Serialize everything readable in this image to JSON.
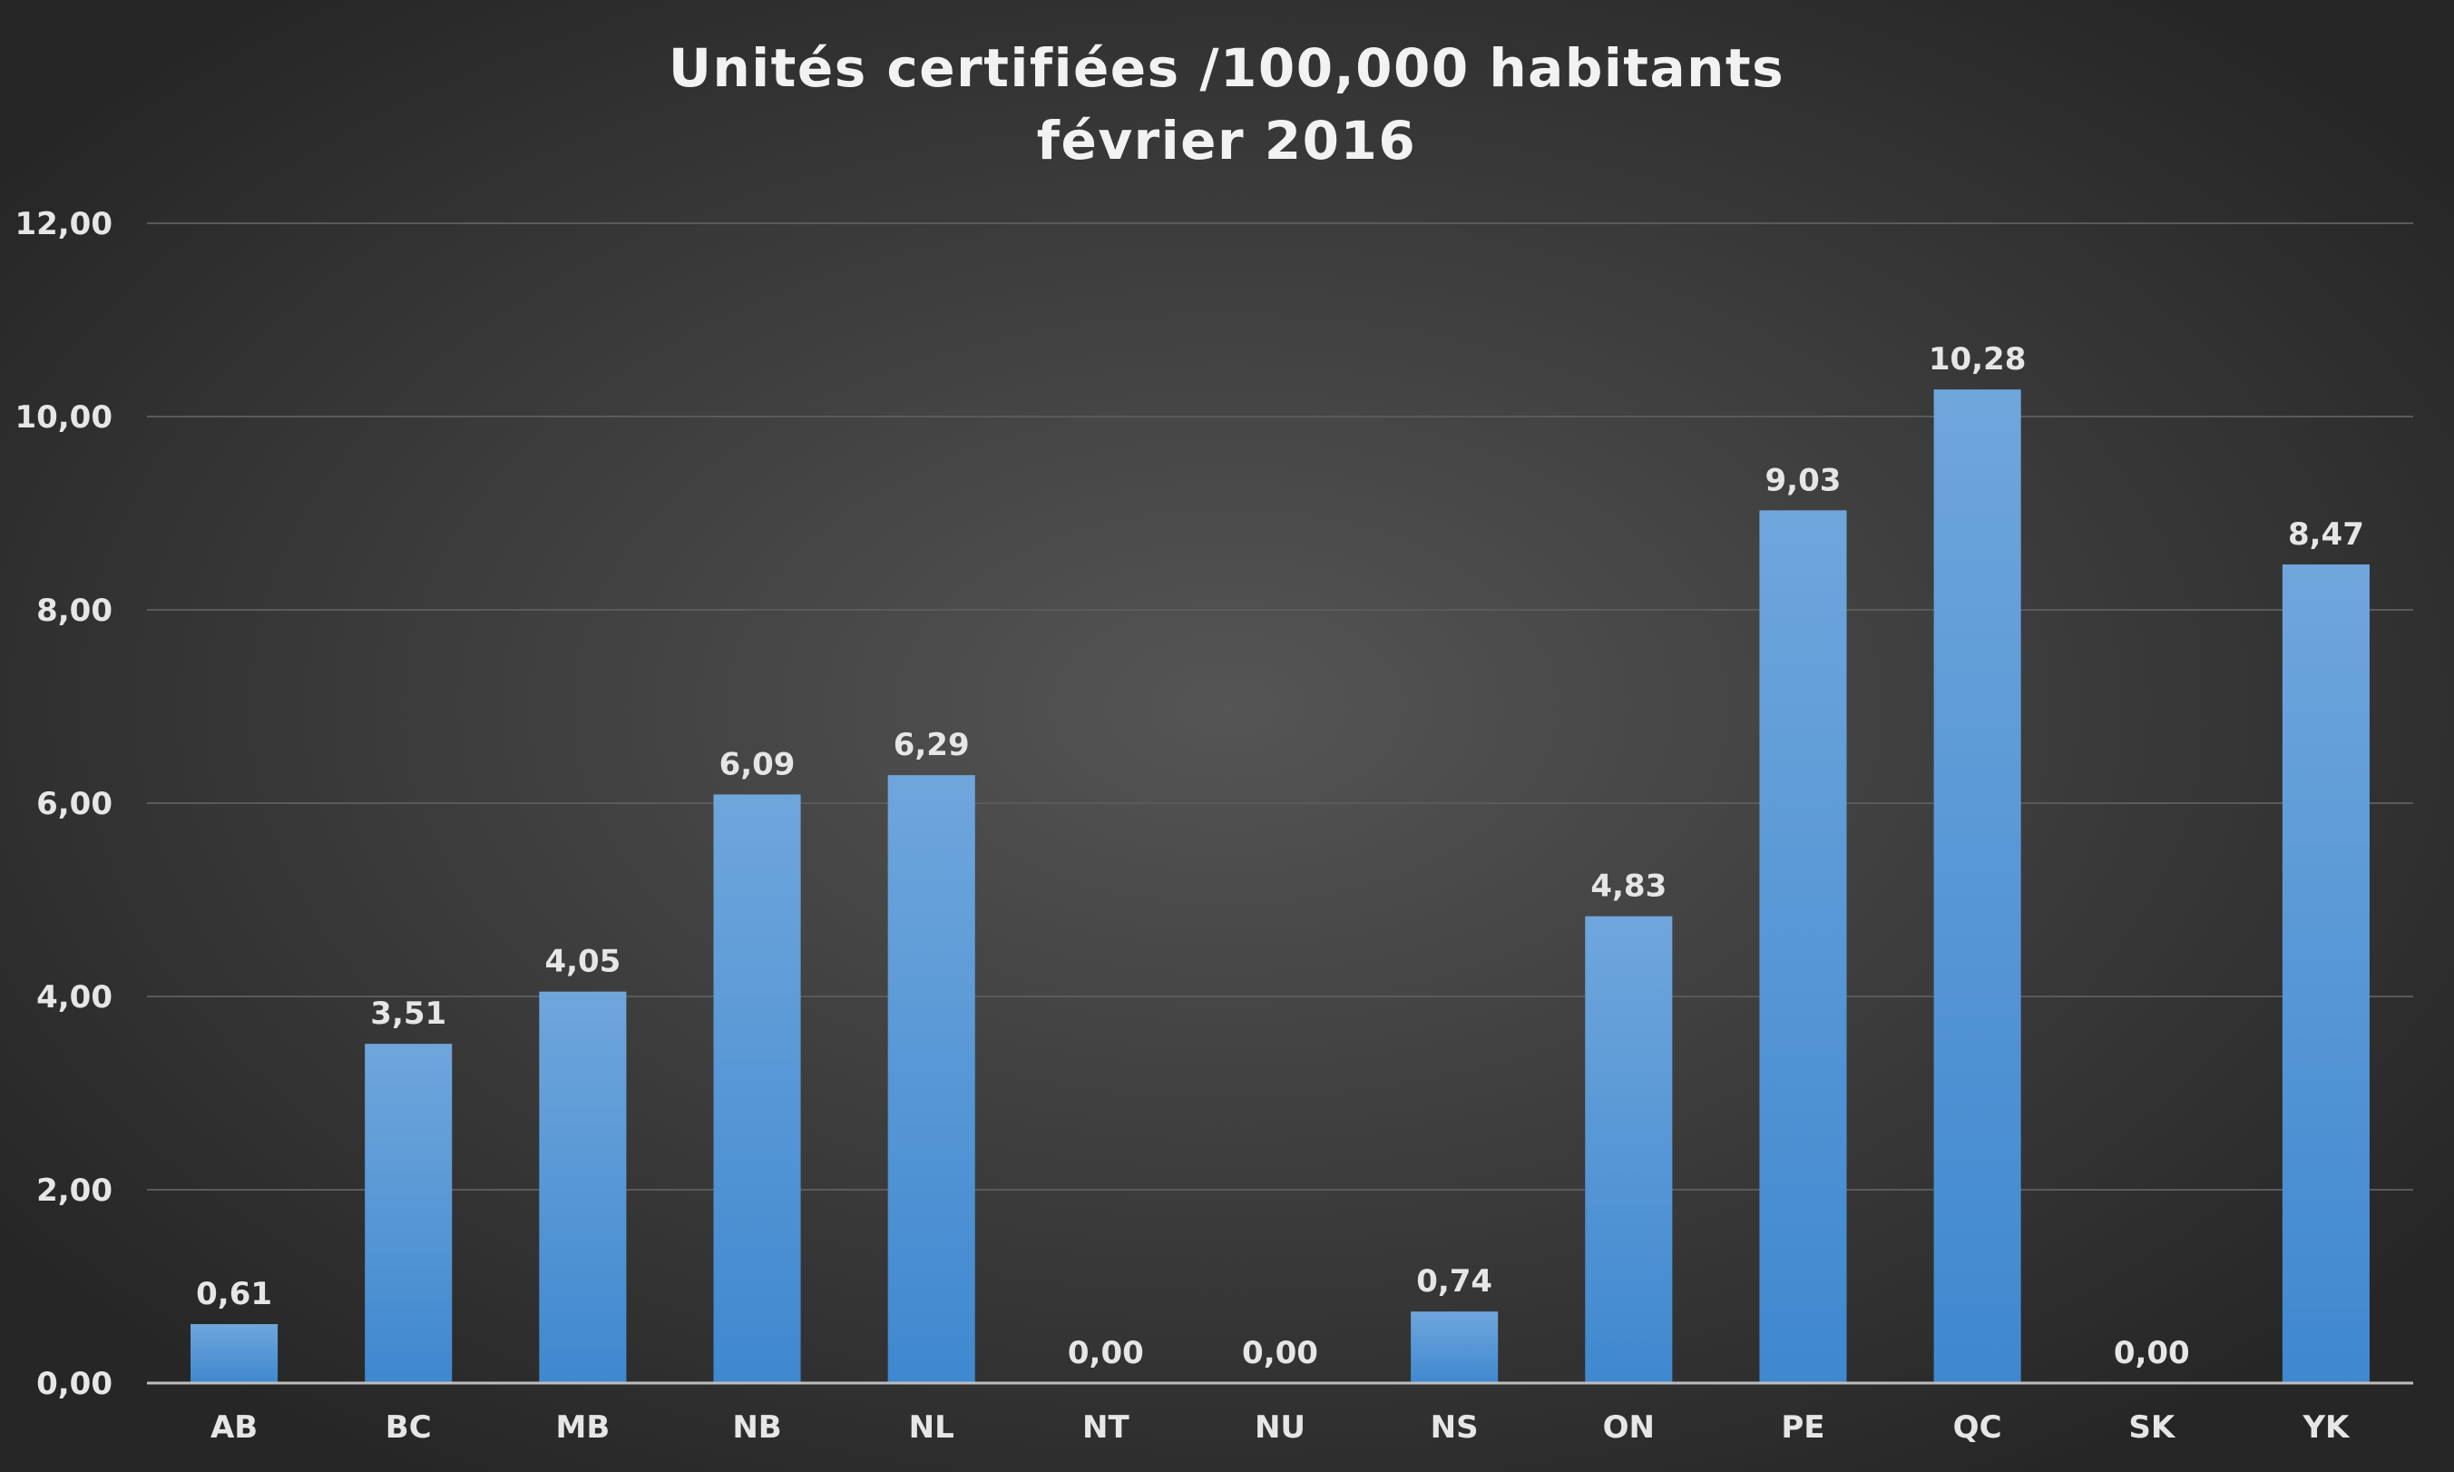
{
  "chart_data": {
    "type": "bar",
    "title": [
      "Unités certifiées /100,000 habitants",
      "février 2016"
    ],
    "categories": [
      "AB",
      "BC",
      "MB",
      "NB",
      "NL",
      "NT",
      "NU",
      "NS",
      "ON",
      "PE",
      "QC",
      "SK",
      "YK"
    ],
    "values": [
      0.61,
      3.51,
      4.05,
      6.09,
      6.29,
      0.0,
      0.0,
      0.74,
      4.83,
      9.03,
      10.28,
      0.0,
      8.47
    ],
    "data_labels": [
      "0,61",
      "3,51",
      "4,05",
      "6,09",
      "6,29",
      "0,00",
      "0,00",
      "0,74",
      "4,83",
      "9,03",
      "10,28",
      "0,00",
      "8,47"
    ],
    "ylim": [
      0,
      12
    ],
    "y_ticks": [
      0,
      2,
      4,
      6,
      8,
      10,
      12
    ],
    "y_tick_labels": [
      "0,00",
      "2,00",
      "4,00",
      "6,00",
      "8,00",
      "10,00",
      "12,00"
    ],
    "xlabel": "",
    "ylabel": "",
    "grid": true,
    "legend": "none",
    "colors": {
      "background_center": "#555555",
      "background_edge": "#262626",
      "bar_top": "#6fa6dc",
      "bar_bottom": "#3f88cf",
      "text": "#e6e6e6",
      "title": "#f2f2f2",
      "grid": "#5a5a5a",
      "axis": "#bdbdbd"
    }
  }
}
